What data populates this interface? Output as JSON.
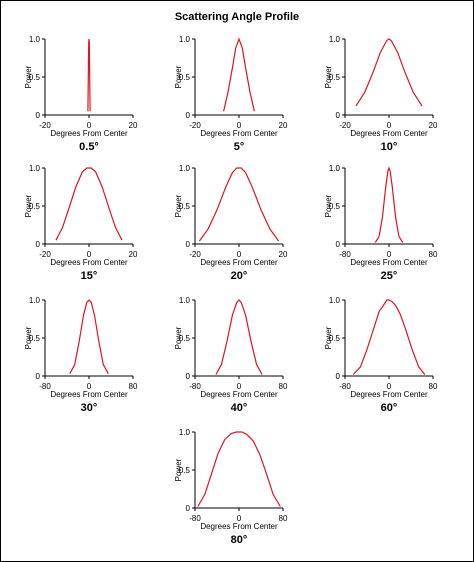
{
  "title": "Scattering Angle Profile",
  "chart_data": [
    {
      "type": "line",
      "label": "0.5°",
      "xlabel": "Degrees From Center",
      "ylabel": "Power",
      "xlim": [
        -20,
        20
      ],
      "ylim": [
        0,
        1
      ],
      "xticks": [
        "-20",
        "0",
        "20"
      ],
      "yticks": [
        "0",
        "0.5",
        "1.0"
      ],
      "x": [
        -0.5,
        -0.3,
        -0.15,
        0,
        0.15,
        0.3,
        0.5
      ],
      "y": [
        0.05,
        0.5,
        0.95,
        1.0,
        0.95,
        0.5,
        0.05
      ]
    },
    {
      "type": "line",
      "label": "5°",
      "xlabel": "Degrees From Center",
      "ylabel": "Power",
      "xlim": [
        -20,
        20
      ],
      "ylim": [
        0,
        1
      ],
      "xticks": [
        "-20",
        "0",
        "20"
      ],
      "yticks": [
        "0",
        "0.5",
        "1.0"
      ],
      "x": [
        -7,
        -5,
        -3,
        -1.5,
        0,
        1.5,
        3,
        5,
        7
      ],
      "y": [
        0.05,
        0.3,
        0.62,
        0.88,
        1.0,
        0.88,
        0.62,
        0.3,
        0.05
      ]
    },
    {
      "type": "line",
      "label": "10°",
      "xlabel": "Degrees From Center",
      "ylabel": "Power",
      "xlim": [
        -20,
        20
      ],
      "ylim": [
        0,
        1
      ],
      "xticks": [
        "-20",
        "0",
        "20"
      ],
      "yticks": [
        "0",
        "0.5",
        "1.0"
      ],
      "x": [
        -15,
        -11,
        -7,
        -4,
        -1,
        0,
        1,
        4,
        7,
        11,
        15
      ],
      "y": [
        0.12,
        0.3,
        0.58,
        0.82,
        0.98,
        1.0,
        0.98,
        0.82,
        0.58,
        0.3,
        0.12
      ]
    },
    {
      "type": "line",
      "label": "15°",
      "xlabel": "Degrees From Center",
      "ylabel": "Power",
      "xlim": [
        -20,
        20
      ],
      "ylim": [
        0,
        1
      ],
      "xticks": [
        "-20",
        "0",
        "20"
      ],
      "yticks": [
        "0",
        "0.5",
        "1.0"
      ],
      "x": [
        -15,
        -12,
        -9,
        -6,
        -3,
        -1,
        1,
        3,
        6,
        9,
        12,
        15
      ],
      "y": [
        0.05,
        0.22,
        0.48,
        0.75,
        0.95,
        1.0,
        1.0,
        0.95,
        0.75,
        0.48,
        0.22,
        0.05
      ]
    },
    {
      "type": "line",
      "label": "20°",
      "xlabel": "Degrees From Center",
      "ylabel": "Power",
      "xlim": [
        -20,
        20
      ],
      "ylim": [
        0,
        1
      ],
      "xticks": [
        "-20",
        "0",
        "20"
      ],
      "yticks": [
        "0",
        "0.5",
        "1.0"
      ],
      "x": [
        -18,
        -14,
        -10,
        -6,
        -3,
        -1,
        1,
        3,
        6,
        10,
        14,
        18
      ],
      "y": [
        0.04,
        0.2,
        0.45,
        0.75,
        0.94,
        1.0,
        1.0,
        0.94,
        0.75,
        0.45,
        0.2,
        0.04
      ]
    },
    {
      "type": "line",
      "label": "25°",
      "xlabel": "Degrees From Center",
      "ylabel": "Power",
      "xlim": [
        -80,
        80
      ],
      "ylim": [
        0,
        1
      ],
      "xticks": [
        "-80",
        "0",
        "80"
      ],
      "yticks": [
        "0",
        "0.5",
        "1.0"
      ],
      "x": [
        -25,
        -18,
        -12,
        -6,
        -2,
        0,
        2,
        6,
        12,
        18,
        25
      ],
      "y": [
        0.02,
        0.1,
        0.35,
        0.75,
        0.96,
        1.0,
        0.96,
        0.75,
        0.35,
        0.1,
        0.02
      ]
    },
    {
      "type": "line",
      "label": "30°",
      "xlabel": "Degrees From Center",
      "ylabel": "Power",
      "xlim": [
        -80,
        80
      ],
      "ylim": [
        0,
        1
      ],
      "xticks": [
        "-80",
        "0",
        "80"
      ],
      "yticks": [
        "0",
        "0.5",
        "1.0"
      ],
      "x": [
        -35,
        -26,
        -18,
        -10,
        -4,
        0,
        4,
        10,
        18,
        26,
        35
      ],
      "y": [
        0.03,
        0.15,
        0.45,
        0.8,
        0.97,
        1.0,
        0.97,
        0.8,
        0.45,
        0.15,
        0.03
      ]
    },
    {
      "type": "line",
      "label": "40°",
      "xlabel": "Degrees From Center",
      "ylabel": "Power",
      "xlim": [
        -80,
        80
      ],
      "ylim": [
        0,
        1
      ],
      "xticks": [
        "-80",
        "0",
        "80"
      ],
      "yticks": [
        "0",
        "0.5",
        "1.0"
      ],
      "x": [
        -42,
        -32,
        -22,
        -12,
        -4,
        0,
        4,
        12,
        22,
        32,
        42
      ],
      "y": [
        0.02,
        0.15,
        0.45,
        0.8,
        0.97,
        1.0,
        0.97,
        0.8,
        0.45,
        0.15,
        0.02
      ]
    },
    {
      "type": "line",
      "label": "60°",
      "xlabel": "Degrees From Center",
      "ylabel": "Power",
      "xlim": [
        -80,
        80
      ],
      "ylim": [
        0,
        1
      ],
      "xticks": [
        "-80",
        "0",
        "80"
      ],
      "yticks": [
        "0",
        "0.5",
        "1.0"
      ],
      "x": [
        -65,
        -52,
        -40,
        -28,
        -18,
        -10,
        -4,
        0,
        5,
        12,
        20,
        30,
        42,
        54,
        65
      ],
      "y": [
        0.02,
        0.12,
        0.35,
        0.62,
        0.85,
        0.93,
        1.0,
        1.0,
        0.98,
        0.93,
        0.82,
        0.62,
        0.35,
        0.12,
        0.02
      ]
    },
    {
      "type": "line",
      "label": "80°",
      "xlabel": "Degrees From Center",
      "ylabel": "Power",
      "xlim": [
        -80,
        80
      ],
      "ylim": [
        0,
        1
      ],
      "xticks": [
        "-80",
        "0",
        "80"
      ],
      "yticks": [
        "0",
        "0.5",
        "1.0"
      ],
      "x": [
        -75,
        -62,
        -50,
        -38,
        -26,
        -14,
        -5,
        0,
        5,
        14,
        26,
        38,
        50,
        62,
        75
      ],
      "y": [
        0.02,
        0.18,
        0.45,
        0.72,
        0.9,
        0.98,
        1.0,
        1.0,
        1.0,
        0.97,
        0.88,
        0.7,
        0.45,
        0.18,
        0.02
      ]
    }
  ]
}
